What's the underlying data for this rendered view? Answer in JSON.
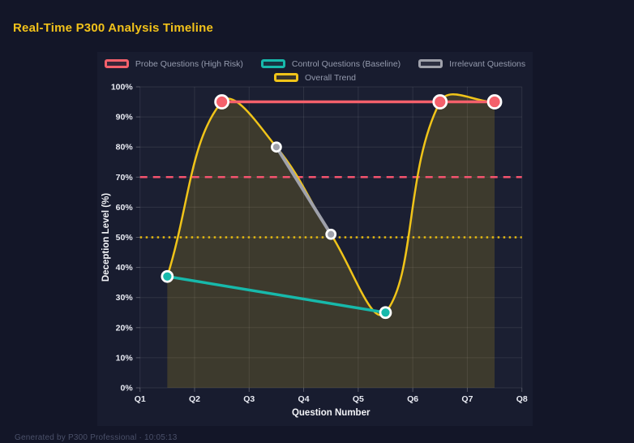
{
  "page": {
    "title": "Real-Time P300 Analysis Timeline",
    "footer": "Generated by P300 Professional · 10:05:13"
  },
  "colors": {
    "page_background": "#131628",
    "panel_background": "#181c2f",
    "title": "#f2c21a",
    "legend_text": "#949aad",
    "tick_text": "#e9ebf3",
    "axis_title_text": "#f3f4f8",
    "grid": "rgba(255,255,255,0.09)",
    "tick_mark": "rgba(255,255,255,0.25)",
    "marker_ring": "#ffffff",
    "footer_text": "#4a5069",
    "plot_background": "rgba(255,255,255,0.015)"
  },
  "chart_data": {
    "type": "line",
    "title": "Real-Time P300 Analysis Timeline",
    "xlabel": "Question Number",
    "ylabel": "Deception Level (%)",
    "xlim": [
      1,
      8
    ],
    "ylim": [
      0,
      100
    ],
    "x_ticks": [
      "Q1",
      "Q2",
      "Q3",
      "Q4",
      "Q5",
      "Q6",
      "Q7",
      "Q8"
    ],
    "y_ticks": [
      "0%",
      "10%",
      "20%",
      "30%",
      "40%",
      "50%",
      "60%",
      "70%",
      "80%",
      "90%",
      "100%"
    ],
    "grid": true,
    "legend_position": "top",
    "series": [
      {
        "name": "Probe Questions (High Risk)",
        "color": "#f4606b",
        "points": [
          [
            2.5,
            95
          ],
          [
            6.5,
            95
          ],
          [
            7.5,
            95
          ]
        ],
        "smooth": false,
        "line_width": 3.5,
        "marker_radius": 8
      },
      {
        "name": "Control Questions (Baseline)",
        "color": "#17b9ab",
        "points": [
          [
            1.5,
            37
          ],
          [
            5.5,
            25
          ]
        ],
        "smooth": false,
        "line_width": 3.5,
        "marker_radius": 6.5
      },
      {
        "name": "Irrelevant Questions",
        "color": "#9fa1ab",
        "points": [
          [
            3.5,
            80
          ],
          [
            4.5,
            51
          ]
        ],
        "smooth": false,
        "line_width": 4,
        "marker_radius": 5.5
      },
      {
        "name": "Overall Trend",
        "color": "#f0c419",
        "points": [
          [
            1.5,
            37
          ],
          [
            2.5,
            95
          ],
          [
            3.5,
            80
          ],
          [
            4.5,
            51
          ],
          [
            5.5,
            25
          ],
          [
            6.5,
            95
          ],
          [
            7.5,
            95
          ]
        ],
        "smooth": true,
        "fill": "rgba(240,196,25,0.16)",
        "line_width": 2.5,
        "marker_radius": 0
      }
    ],
    "thresholds": [
      {
        "y": 70,
        "color": "#f4536e",
        "style": "dashed"
      },
      {
        "y": 50,
        "color": "#e5b912",
        "style": "dotted"
      }
    ]
  }
}
